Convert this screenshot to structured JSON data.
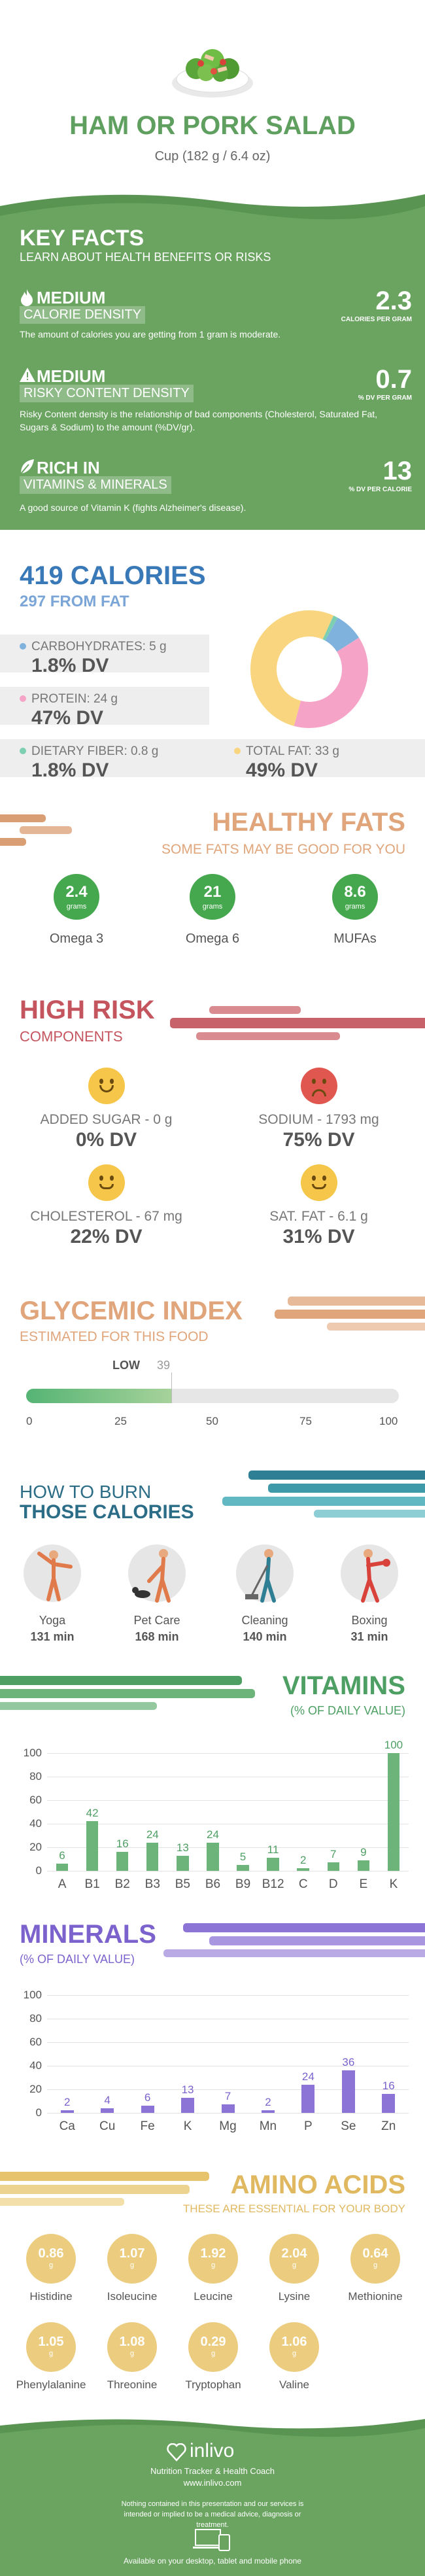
{
  "header": {
    "title": "HAM OR PORK SALAD",
    "serving": "Cup (182 g / 6.4 oz)"
  },
  "key_facts": {
    "title": "KEY FACTS",
    "subtitle": "LEARN ABOUT HEALTH BENEFITS OR RISKS",
    "items": [
      {
        "level": "MEDIUM",
        "label": "CALORIE DENSITY",
        "value": "2.3",
        "unit": "CALORIES PER GRAM",
        "desc": "The amount of calories you are getting from 1 gram is moderate.",
        "icon": "flame-icon"
      },
      {
        "level": "MEDIUM",
        "label": "RISKY CONTENT DENSITY",
        "value": "0.7",
        "unit": "% DV PER GRAM",
        "desc": "Risky Content density is the relationship of bad components (Cholesterol, Saturated Fat, Sugars & Sodium) to the amount (%DV/gr).",
        "icon": "warning-icon"
      },
      {
        "level": "RICH IN",
        "label": "VITAMINS & MINERALS",
        "value": "13",
        "unit": "% DV PER CALORIE",
        "desc": "A good source of Vitamin K (fights Alzheimer's disease).",
        "icon": "leaf-icon"
      }
    ]
  },
  "calories": {
    "title": "419 CALORIES",
    "from_fat": "297 FROM FAT",
    "carbs": {
      "label": "CARBOHYDRATES: 5 g",
      "dv": "1.8% DV",
      "color": "#7fb2dc"
    },
    "protein": {
      "label": "PROTEIN: 24 g",
      "dv": "47% DV",
      "color": "#f5a3c7"
    },
    "fiber": {
      "label": "DIETARY FIBER: 0.8 g",
      "dv": "1.8% DV",
      "color": "#7ccfb0"
    },
    "fat": {
      "label": "TOTAL FAT: 33 g",
      "dv": "49% DV",
      "color": "#f8d57e"
    }
  },
  "chart_data": [
    {
      "type": "pie",
      "title": "",
      "labels": [
        "Carbohydrates",
        "Protein",
        "Total Fat",
        "Dietary Fiber"
      ],
      "values": [
        5,
        24,
        33,
        0.8
      ],
      "colors": [
        "#7fb2dc",
        "#f5a3c7",
        "#f8d57e",
        "#7ccfb0"
      ]
    },
    {
      "type": "bar",
      "title": "VITAMINS",
      "categories": [
        "A",
        "B1",
        "B2",
        "B3",
        "B5",
        "B6",
        "B9",
        "B12",
        "C",
        "D",
        "E",
        "K"
      ],
      "values": [
        6,
        42,
        16,
        24,
        13,
        24,
        5,
        11,
        2,
        7,
        9,
        100
      ],
      "ylim": [
        0,
        100
      ],
      "yticks": [
        0,
        20,
        40,
        60,
        80,
        100
      ],
      "color": "#6db47b"
    },
    {
      "type": "bar",
      "title": "MINERALS",
      "categories": [
        "Ca",
        "Cu",
        "Fe",
        "K",
        "Mg",
        "Mn",
        "P",
        "Se",
        "Zn"
      ],
      "values": [
        2,
        4,
        6,
        13,
        7,
        2,
        24,
        36,
        16
      ],
      "ylim": [
        0,
        100
      ],
      "yticks": [
        0,
        20,
        40,
        60,
        80,
        100
      ],
      "color": "#8c73d6"
    }
  ],
  "healthy_fats": {
    "title": "HEALTHY FATS",
    "subtitle": "SOME FATS MAY BE GOOD FOR YOU",
    "items": [
      {
        "value": "2.4",
        "unit": "grams",
        "label": "Omega 3"
      },
      {
        "value": "21",
        "unit": "grams",
        "label": "Omega 6"
      },
      {
        "value": "8.6",
        "unit": "grams",
        "label": "MUFAs"
      }
    ]
  },
  "high_risk": {
    "title": "HIGH RISK",
    "subtitle": "COMPONENTS",
    "items": [
      {
        "label": "ADDED SUGAR - 0 g",
        "dv": "0% DV",
        "mood": "happy"
      },
      {
        "label": "SODIUM - 1793 mg",
        "dv": "75% DV",
        "mood": "sad"
      },
      {
        "label": "CHOLESTEROL - 67 mg",
        "dv": "22% DV",
        "mood": "neutral"
      },
      {
        "label": "SAT. FAT - 6.1 g",
        "dv": "31% DV",
        "mood": "neutral"
      }
    ]
  },
  "glycemic": {
    "title": "GLYCEMIC INDEX",
    "subtitle": "ESTIMATED FOR THIS FOOD",
    "level": "LOW",
    "value": "39",
    "value_num": 39,
    "ticks": [
      "0",
      "25",
      "50",
      "75",
      "100"
    ]
  },
  "burn": {
    "title_1": "HOW TO BURN",
    "title_2": "THOSE CALORIES",
    "activities": [
      {
        "name": "Yoga",
        "time": "131 min",
        "icon": "yoga-icon"
      },
      {
        "name": "Pet Care",
        "time": "168 min",
        "icon": "dog-walking-icon"
      },
      {
        "name": "Cleaning",
        "time": "140 min",
        "icon": "cleaning-icon"
      },
      {
        "name": "Boxing",
        "time": "31 min",
        "icon": "boxing-icon"
      }
    ]
  },
  "vitamins": {
    "title": "VITAMINS",
    "subtitle": "(% OF DAILY VALUE)"
  },
  "minerals": {
    "title": "MINERALS",
    "subtitle": "(% OF DAILY VALUE)"
  },
  "amino": {
    "title": "AMINO ACIDS",
    "subtitle": "THESE ARE ESSENTIAL FOR YOUR BODY",
    "unit": "g",
    "items": [
      {
        "value": "0.86",
        "label": "Histidine"
      },
      {
        "value": "1.07",
        "label": "Isoleucine"
      },
      {
        "value": "1.92",
        "label": "Leucine"
      },
      {
        "value": "2.04",
        "label": "Lysine"
      },
      {
        "value": "0.64",
        "label": "Methionine"
      },
      {
        "value": "1.05",
        "label": "Phenylalanine"
      },
      {
        "value": "1.08",
        "label": "Threonine"
      },
      {
        "value": "0.29",
        "label": "Tryptophan"
      },
      {
        "value": "1.06",
        "label": "Valine"
      }
    ]
  },
  "footer": {
    "brand": "inlivo",
    "tagline": "Nutrition Tracker & Health Coach",
    "url": "www.inlivo.com",
    "disclaimer": "Nothing contained in this presentation and our services is intended or implied to be a medical advice, diagnosis or treatment.",
    "available": "Available on your desktop, tablet and mobile phone"
  }
}
